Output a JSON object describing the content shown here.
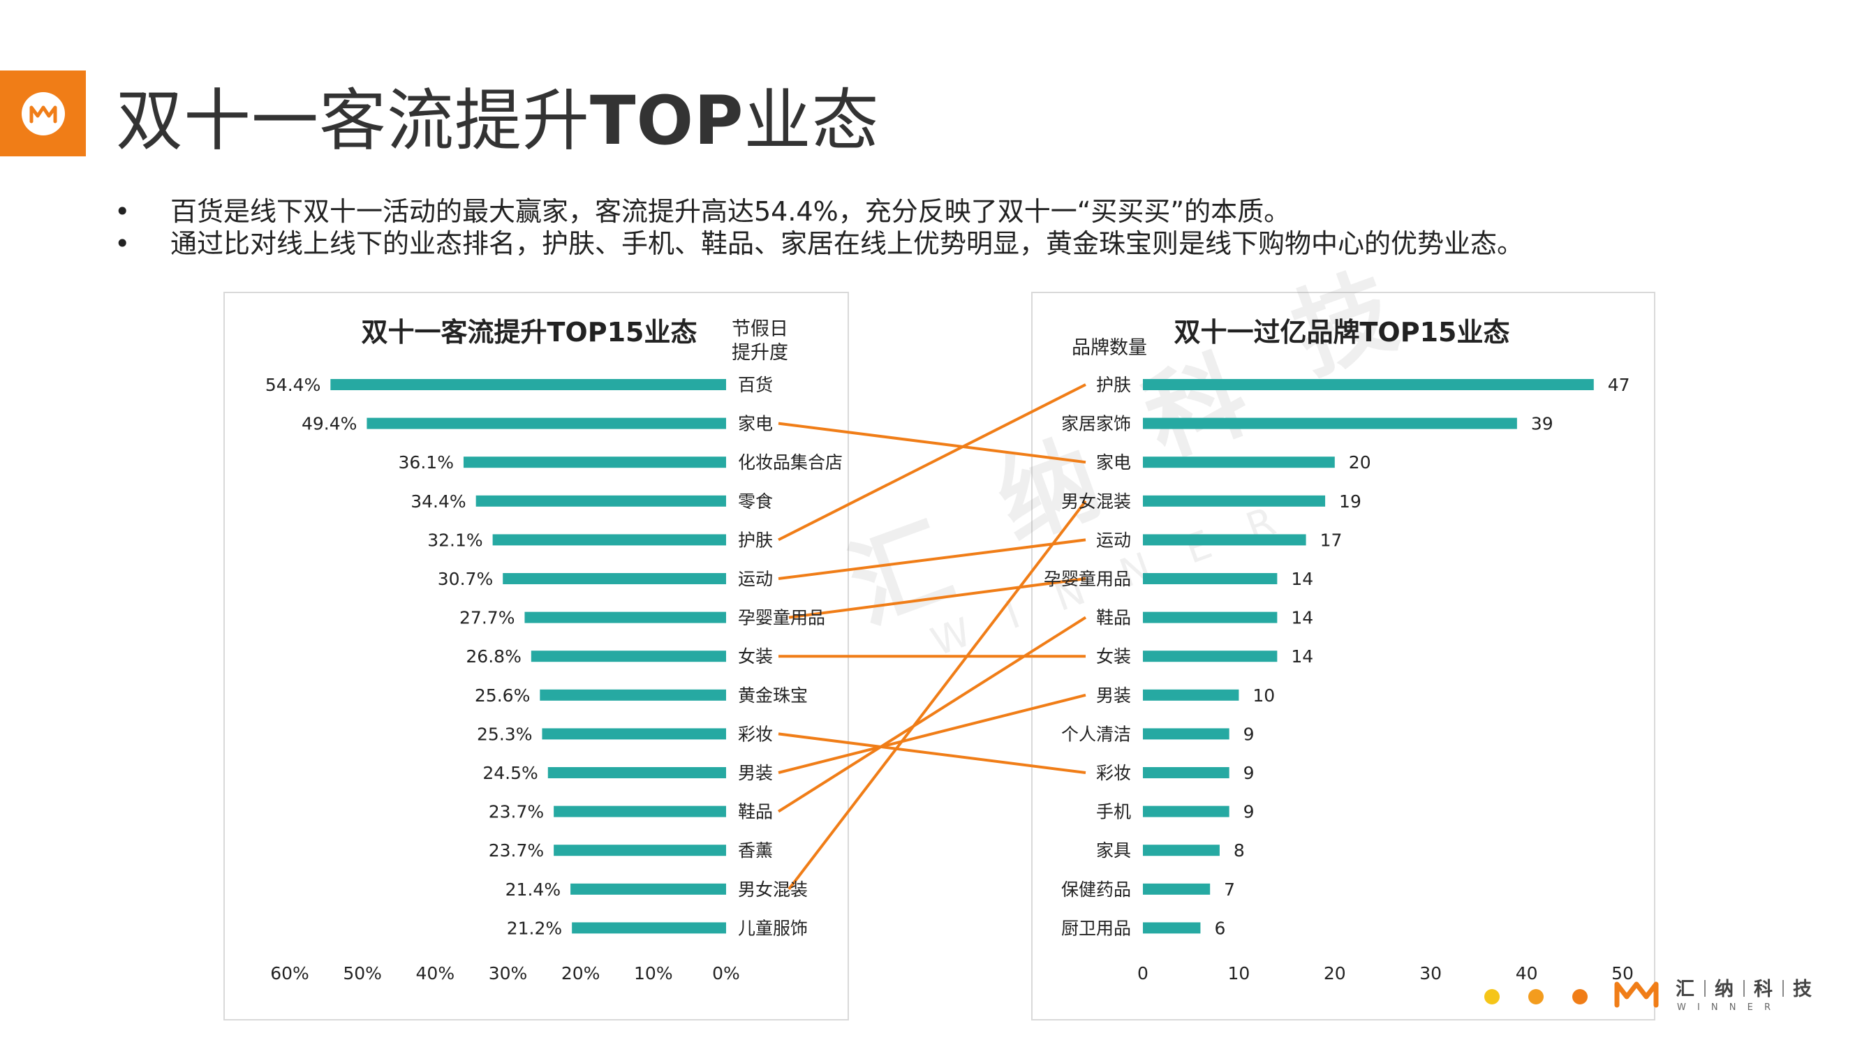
{
  "page": {
    "title_prefix": "双十一客流提升",
    "title_bold": "TOP",
    "title_suffix": "业态",
    "bullets": [
      "百货是线下双十一活动的最大赢家，客流提升高达54.4%，充分反映了双十一“买买买”的本质。",
      "通过比对线上线下的业态排名，护肤、手机、鞋品、家居在线上优势明显，黄金珠宝则是线下购物中心的优势业态。"
    ],
    "watermark": {
      "cn": [
        "汇",
        "纳",
        "科",
        "技"
      ],
      "en": "W I N N E R"
    },
    "footer": {
      "brand_cn": [
        "汇",
        "纳",
        "科",
        "技"
      ],
      "brand_en": "W I N N E R",
      "dot_colors": [
        "#f5c518",
        "#f39c1e",
        "#f07d17"
      ]
    }
  },
  "colors": {
    "bar": "#26a9a2",
    "link": "#f07d17",
    "accent": "#f07d17",
    "border": "#d9d9d9"
  },
  "chart_data": [
    {
      "type": "bar",
      "orientation": "horizontal-reversed",
      "title": "双十一客流提升TOP15业态",
      "header": [
        "节假日",
        "提升度"
      ],
      "categories": [
        "百货",
        "家电",
        "化妆品集合店",
        "零食",
        "护肤",
        "运动",
        "孕婴童用品",
        "女装",
        "黄金珠宝",
        "彩妆",
        "男装",
        "鞋品",
        "香薰",
        "男女混装",
        "儿童服饰"
      ],
      "values": [
        54.4,
        49.4,
        36.1,
        34.4,
        32.1,
        30.7,
        27.7,
        26.8,
        25.6,
        25.3,
        24.5,
        23.7,
        23.7,
        21.4,
        21.2
      ],
      "value_labels": [
        "54.4%",
        "49.4%",
        "36.1%",
        "34.4%",
        "32.1%",
        "30.7%",
        "27.7%",
        "26.8%",
        "25.6%",
        "25.3%",
        "24.5%",
        "23.7%",
        "23.7%",
        "21.4%",
        "21.2%"
      ],
      "xlim": [
        0,
        60
      ],
      "ticks": [
        "60%",
        "50%",
        "40%",
        "30%",
        "20%",
        "10%",
        "0%"
      ],
      "tick_values": [
        60,
        50,
        40,
        30,
        20,
        10,
        0
      ]
    },
    {
      "type": "bar",
      "orientation": "horizontal",
      "title": "双十一过亿品牌TOP15业态",
      "header": [
        "品牌数量"
      ],
      "categories": [
        "护肤",
        "家居家饰",
        "家电",
        "男女混装",
        "运动",
        "孕婴童用品",
        "鞋品",
        "女装",
        "男装",
        "个人清洁",
        "彩妆",
        "手机",
        "家具",
        "保健药品",
        "厨卫用品"
      ],
      "values": [
        47,
        39,
        20,
        19,
        17,
        14,
        14,
        14,
        10,
        9,
        9,
        9,
        8,
        7,
        6
      ],
      "value_labels": [
        "47",
        "39",
        "20",
        "19",
        "17",
        "14",
        "14",
        "14",
        "10",
        "9",
        "9",
        "9",
        "8",
        "7",
        "6"
      ],
      "xlim": [
        0,
        50
      ],
      "ticks": [
        "0",
        "10",
        "20",
        "30",
        "40",
        "50"
      ],
      "tick_values": [
        0,
        10,
        20,
        30,
        40,
        50
      ]
    }
  ],
  "links": [
    {
      "from": "家电",
      "to": "家电"
    },
    {
      "from": "护肤",
      "to": "护肤"
    },
    {
      "from": "运动",
      "to": "运动"
    },
    {
      "from": "孕婴童用品",
      "to": "孕婴童用品"
    },
    {
      "from": "女装",
      "to": "女装"
    },
    {
      "from": "彩妆",
      "to": "彩妆"
    },
    {
      "from": "男装",
      "to": "男装"
    },
    {
      "from": "鞋品",
      "to": "鞋品"
    },
    {
      "from": "男女混装",
      "to": "男女混装"
    }
  ]
}
